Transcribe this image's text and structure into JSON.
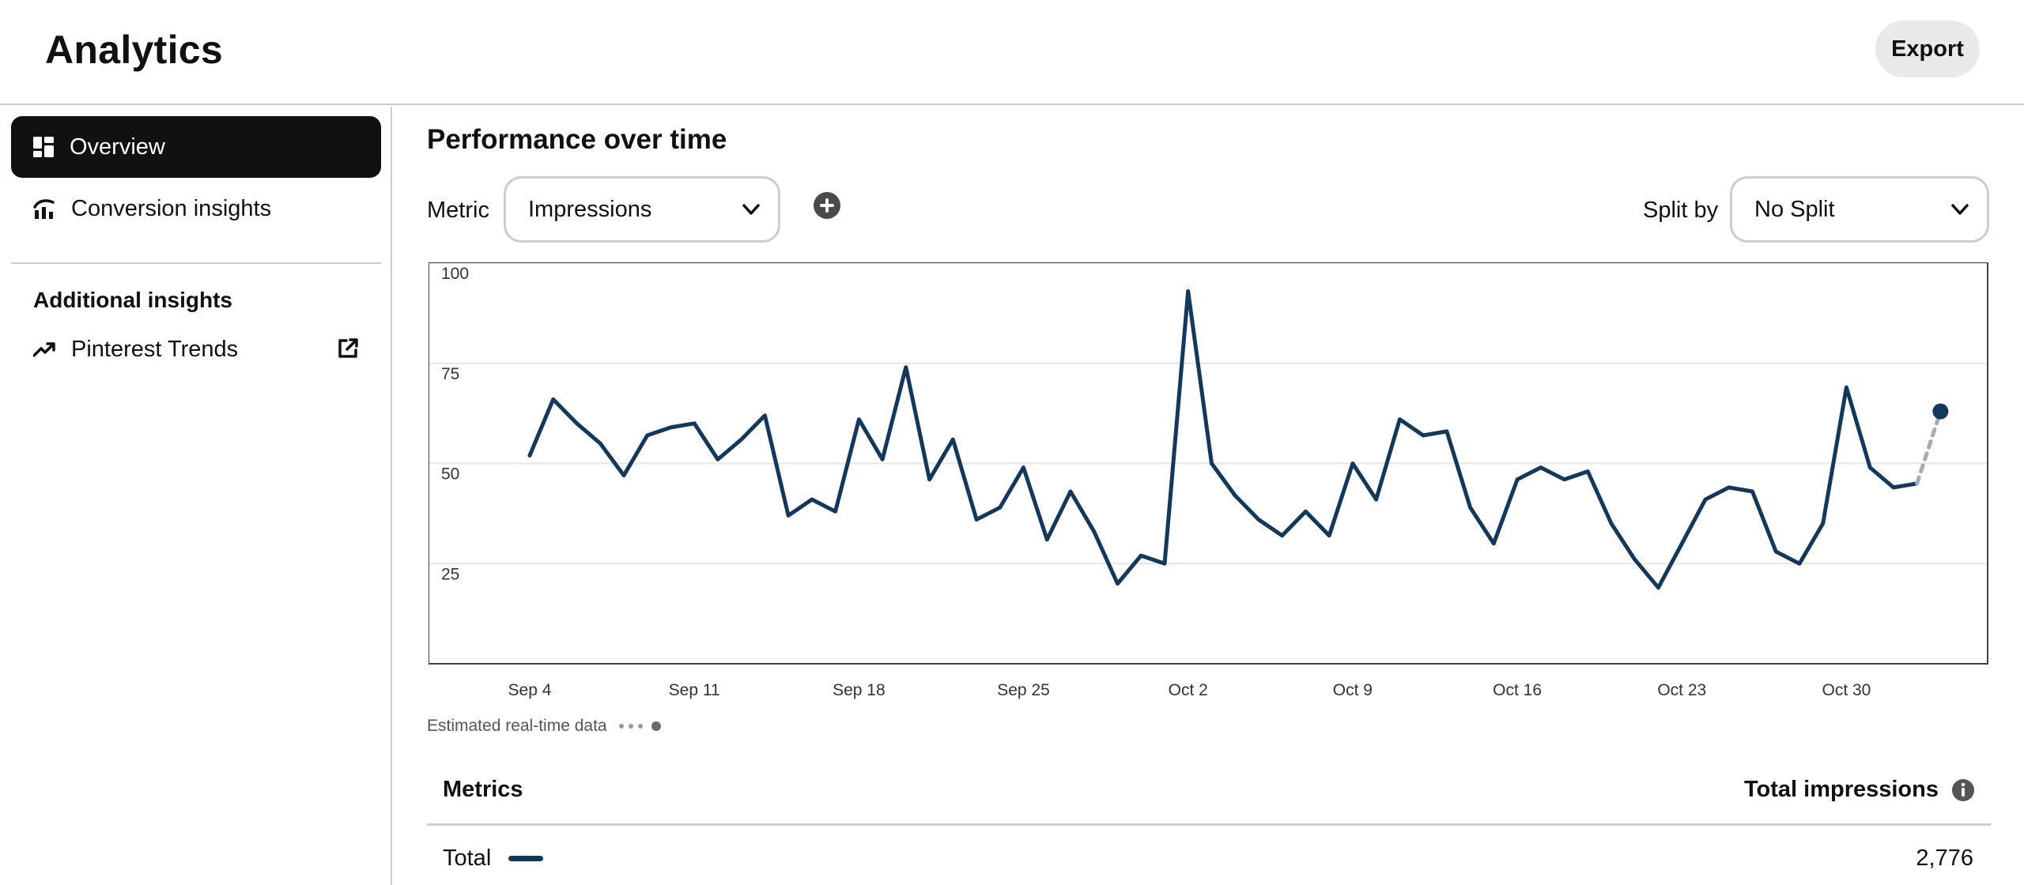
{
  "header": {
    "title": "Analytics",
    "export_label": "Export"
  },
  "sidebar": {
    "items": [
      {
        "label": "Overview",
        "icon": "dashboard-icon",
        "active": true
      },
      {
        "label": "Conversion insights",
        "icon": "conversion-chart-icon",
        "active": false
      }
    ],
    "section_title": "Additional insights",
    "trends": {
      "label": "Pinterest Trends",
      "icon": "trending-up-icon",
      "external_icon": "external-link-icon"
    }
  },
  "main": {
    "title": "Performance over time",
    "metric_label": "Metric",
    "metric_value": "Impressions",
    "split_label": "Split by",
    "split_value": "No Split",
    "estimated_note": "Estimated real-time data",
    "table": {
      "col_metrics": "Metrics",
      "col_total": "Total impressions",
      "rows": [
        {
          "name": "Total",
          "value": "2,776"
        }
      ]
    }
  },
  "colors": {
    "series": "#14385c",
    "estimated": "#a3acb9",
    "active_nav": "#111111"
  },
  "chart_data": {
    "type": "line",
    "x_start": "Sep 4",
    "x_tick_labels": [
      "Sep 4",
      "Sep 11",
      "Sep 18",
      "Sep 25",
      "Oct 2",
      "Oct 9",
      "Oct 16",
      "Oct 23",
      "Oct 30"
    ],
    "y_tick_labels": [
      "100",
      "75",
      "50",
      "25"
    ],
    "ylim": [
      0,
      100
    ],
    "series": [
      {
        "values": [
          52,
          66,
          60,
          55,
          47,
          57,
          59,
          60,
          51,
          56,
          62,
          37,
          41,
          38,
          61,
          51,
          74,
          46,
          56,
          36,
          39,
          49,
          31,
          43,
          33,
          20,
          27,
          25,
          93,
          50,
          42,
          36,
          32,
          38,
          32,
          50,
          41,
          61,
          57,
          58,
          39,
          30,
          46,
          49,
          46,
          48,
          35,
          26,
          19,
          30,
          41,
          44,
          43,
          28,
          25,
          35,
          69,
          49,
          44,
          45
        ]
      }
    ],
    "estimated_point": 63,
    "grid": true
  }
}
